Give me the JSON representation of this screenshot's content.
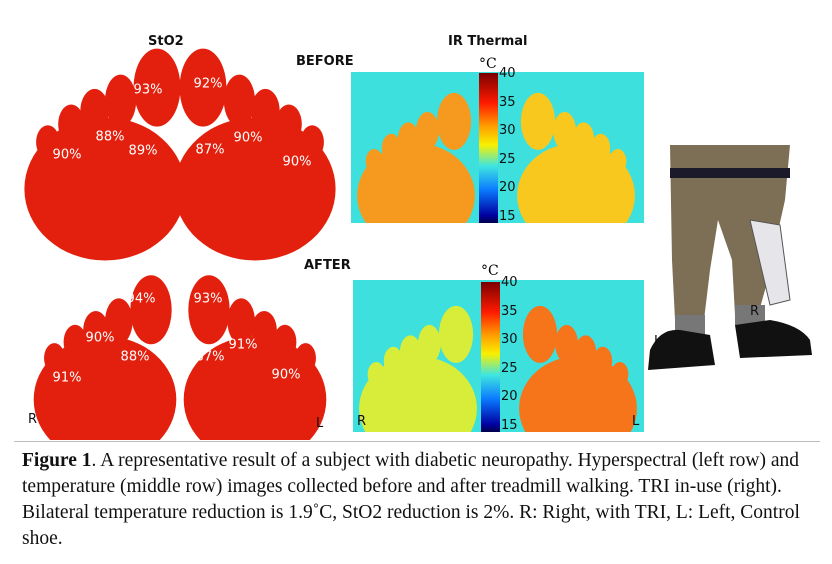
{
  "figure": {
    "sto2_title": "StO2",
    "ir_title": "IR Thermal",
    "before_label": "BEFORE",
    "after_label": "AFTER",
    "side_right": "R",
    "side_left": "L",
    "sto2_before": [
      "93%",
      "88%",
      "89%",
      "90%",
      "92%",
      "87%",
      "90%",
      "90%"
    ],
    "sto2_after": [
      "94%",
      "90%",
      "88%",
      "91%",
      "93%",
      "91%",
      "87%",
      "90%"
    ],
    "colorbar": {
      "unit": "°C",
      "ticks": [
        "40",
        "35",
        "30",
        "25",
        "20",
        "15"
      ],
      "min": 15,
      "max": 40
    },
    "photo_labels": {
      "right": "R",
      "left": "L"
    },
    "colors": {
      "sto2": "#e8220f",
      "thermal_bg": "#3de0dc"
    }
  },
  "caption": {
    "label": "Figure 1",
    "text": ". A representative result of a subject with diabetic neuropathy. Hyperspectral (left row) and temperature (middle row) images collected before and after treadmill walking. TRI in-use (right). Bilateral temperature reduction is 1.9˚C, StO2 reduction is 2%. R: Right, with TRI, L: Left, Control shoe."
  }
}
